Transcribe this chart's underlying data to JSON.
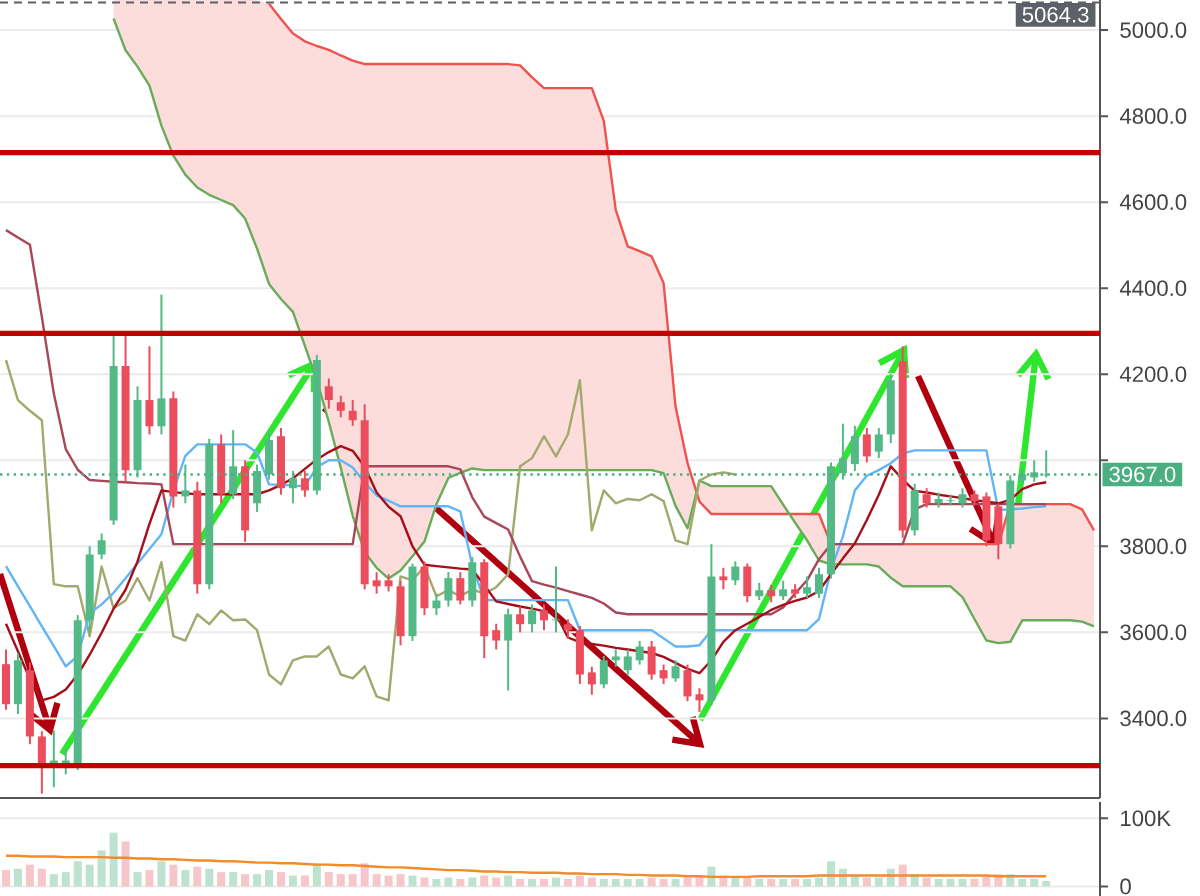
{
  "chart_data": [
    {
      "type": "candlestick",
      "categories": [
        null,
        null,
        null,
        null,
        null,
        null,
        null,
        null,
        null,
        null,
        null,
        null,
        null,
        null,
        null,
        null,
        null,
        null,
        null,
        null,
        null,
        null,
        null,
        null,
        null,
        null,
        null,
        null,
        null,
        null,
        null,
        null,
        null,
        null,
        null,
        null,
        null,
        null,
        null,
        null,
        null,
        null,
        null,
        null,
        null,
        null,
        null,
        null,
        null,
        null,
        null,
        null,
        null,
        null,
        null,
        null,
        null,
        null,
        null,
        null,
        null,
        null,
        null,
        null,
        null,
        null,
        null,
        null,
        null,
        null,
        null,
        null,
        null,
        null,
        null,
        null,
        null,
        null,
        null,
        null,
        null,
        null,
        null,
        null,
        null,
        null,
        null,
        null,
        null,
        null,
        null,
        null
      ],
      "ohlc": [
        [
          3526,
          3560,
          3420,
          3433
        ],
        [
          3433,
          3550,
          3410,
          3535
        ],
        [
          3512,
          3530,
          3340,
          3358
        ],
        [
          3358,
          3370,
          3225,
          3288
        ],
        [
          3288,
          3372,
          3240,
          3302
        ],
        [
          3290,
          3330,
          3270,
          3302
        ],
        [
          3293,
          3640,
          3280,
          3628
        ],
        [
          3628,
          3800,
          3600,
          3781
        ],
        [
          3781,
          3830,
          3770,
          3814
        ],
        [
          3860,
          4290,
          3850,
          4219
        ],
        [
          4219,
          4290,
          3950,
          3977
        ],
        [
          3977,
          4172,
          3960,
          4140
        ],
        [
          4140,
          4265,
          4060,
          4079
        ],
        [
          4079,
          4385,
          4060,
          4144
        ],
        [
          4144,
          4160,
          3890,
          3916
        ],
        [
          3916,
          3990,
          3900,
          3930
        ],
        [
          3930,
          3950,
          3690,
          3712
        ],
        [
          3712,
          4050,
          3700,
          4037
        ],
        [
          4037,
          4060,
          3900,
          3921
        ],
        [
          3921,
          4070,
          3910,
          3986
        ],
        [
          3986,
          4000,
          3810,
          3837
        ],
        [
          3900,
          3990,
          3880,
          3975
        ],
        [
          3967,
          4070,
          3955,
          4047
        ],
        [
          4056,
          4075,
          3920,
          3935
        ],
        [
          3935,
          3975,
          3900,
          3958
        ],
        [
          3958,
          3975,
          3915,
          3930
        ],
        [
          3930,
          4245,
          3920,
          4233
        ],
        [
          4172,
          4190,
          4120,
          4140
        ],
        [
          4135,
          4150,
          4100,
          4115
        ],
        [
          4115,
          4140,
          4080,
          4093
        ],
        [
          4093,
          4130,
          3700,
          3712
        ],
        [
          3721,
          3740,
          3690,
          3707
        ],
        [
          3721,
          3735,
          3695,
          3707
        ],
        [
          3707,
          3720,
          3570,
          3591
        ],
        [
          3591,
          3760,
          3580,
          3753
        ],
        [
          3753,
          3765,
          3640,
          3656
        ],
        [
          3656,
          3690,
          3640,
          3674
        ],
        [
          3674,
          3740,
          3660,
          3726
        ],
        [
          3726,
          3740,
          3665,
          3674
        ],
        [
          3674,
          3775,
          3660,
          3763
        ],
        [
          3763,
          3770,
          3540,
          3591
        ],
        [
          3605,
          3620,
          3560,
          3581
        ],
        [
          3581,
          3655,
          3465,
          3642
        ],
        [
          3642,
          3660,
          3600,
          3619
        ],
        [
          3619,
          3665,
          3600,
          3651
        ],
        [
          3651,
          3665,
          3605,
          3628
        ],
        [
          3628,
          3753,
          3600,
          3630
        ],
        [
          3619,
          3630,
          3585,
          3605
        ],
        [
          3605,
          3615,
          3480,
          3502
        ],
        [
          3507,
          3520,
          3455,
          3479
        ],
        [
          3479,
          3545,
          3470,
          3535
        ],
        [
          3535,
          3560,
          3520,
          3544
        ],
        [
          3512,
          3560,
          3500,
          3544
        ],
        [
          3535,
          3580,
          3525,
          3567
        ],
        [
          3567,
          3580,
          3490,
          3502
        ],
        [
          3512,
          3525,
          3480,
          3493
        ],
        [
          3493,
          3535,
          3485,
          3521
        ],
        [
          3512,
          3525,
          3440,
          3451
        ],
        [
          3456,
          3470,
          3415,
          3442
        ],
        [
          3442,
          3805,
          3430,
          3730
        ],
        [
          3730,
          3750,
          3700,
          3721
        ],
        [
          3721,
          3765,
          3710,
          3753
        ],
        [
          3753,
          3760,
          3670,
          3684
        ],
        [
          3684,
          3715,
          3675,
          3698
        ],
        [
          3698,
          3710,
          3670,
          3684
        ],
        [
          3684,
          3720,
          3675,
          3700
        ],
        [
          3700,
          3712,
          3680,
          3690
        ],
        [
          3690,
          3730,
          3680,
          3705
        ],
        [
          3690,
          3750,
          3680,
          3735
        ],
        [
          3735,
          3995,
          3725,
          3986
        ],
        [
          3970,
          4085,
          3955,
          4005
        ],
        [
          3991,
          4080,
          3975,
          4056
        ],
        [
          4060,
          4075,
          3995,
          4009
        ],
        [
          4020,
          4075,
          4005,
          4060
        ],
        [
          4060,
          4200,
          4040,
          4186
        ],
        [
          4230,
          4265,
          3820,
          3837
        ],
        [
          3837,
          3945,
          3825,
          3930
        ],
        [
          3921,
          3935,
          3890,
          3900
        ],
        [
          3900,
          3925,
          3890,
          3910
        ],
        [
          3905,
          3920,
          3895,
          3907
        ],
        [
          3900,
          3935,
          3890,
          3921
        ],
        [
          3921,
          3930,
          3895,
          3905
        ],
        [
          3916,
          3925,
          3800,
          3814
        ],
        [
          3893,
          3900,
          3770,
          3805
        ],
        [
          3805,
          3965,
          3795,
          3953
        ],
        [
          3953,
          3980,
          3945,
          3967
        ],
        [
          3960,
          4000,
          3950,
          3972
        ],
        [
          3965,
          4023,
          3960,
          3967
        ],
        null,
        null,
        null,
        null
      ],
      "colors": [
        "#eb4d5c",
        "#53b987",
        "#eb4d5c",
        "#eb4d5c",
        "#53b987",
        "#53b987",
        "#53b987",
        "#53b987",
        "#53b987",
        "#53b987",
        "#eb4d5c",
        "#53b987",
        "#eb4d5c",
        "#53b987",
        "#eb4d5c",
        "#53b987",
        "#eb4d5c",
        "#53b987",
        "#eb4d5c",
        "#53b987",
        "#eb4d5c",
        "#53b987",
        "#53b987",
        "#eb4d5c",
        "#53b987",
        "#eb4d5c",
        "#53b987",
        "#eb4d5c",
        "#eb4d5c",
        "#eb4d5c",
        "#eb4d5c",
        "#eb4d5c",
        "#eb4d5c",
        "#eb4d5c",
        "#53b987",
        "#eb4d5c",
        "#53b987",
        "#53b987",
        "#eb4d5c",
        "#53b987",
        "#eb4d5c",
        "#eb4d5c",
        "#53b987",
        "#eb4d5c",
        "#53b987",
        "#eb4d5c",
        "#53b987",
        "#eb4d5c",
        "#eb4d5c",
        "#eb4d5c",
        "#53b987",
        "#53b987",
        "#53b987",
        "#53b987",
        "#eb4d5c",
        "#eb4d5c",
        "#53b987",
        "#eb4d5c",
        "#eb4d5c",
        "#53b987",
        "#eb4d5c",
        "#53b987",
        "#eb4d5c",
        "#53b987",
        "#eb4d5c",
        "#53b987",
        "#eb4d5c",
        "#53b987",
        "#53b987",
        "#53b987",
        "#53b987",
        "#53b987",
        "#eb4d5c",
        "#53b987",
        "#53b987",
        "#eb4d5c",
        "#53b987",
        "#eb4d5c",
        "#53b987",
        "#53b987",
        "#53b987",
        "#eb4d5c",
        "#eb4d5c",
        "#eb4d5c",
        "#53b987",
        "#53b987",
        "#53b987",
        "#53b987",
        null,
        null,
        null,
        null
      ],
      "ylim": [
        3215,
        5070
      ],
      "yticks": [
        {
          "value": 3400,
          "label": "3400.0"
        },
        {
          "value": 3600,
          "label": "3600.0"
        },
        {
          "value": 3800,
          "label": "3800.0"
        },
        {
          "value": 4000,
          "label": null
        },
        {
          "value": 4200,
          "label": "4200.0"
        },
        {
          "value": 4400,
          "label": "4400.0"
        },
        {
          "value": 4600,
          "label": "4600.0"
        },
        {
          "value": 4800,
          "label": "4800.0"
        },
        {
          "value": 5000,
          "label": "5000.0"
        }
      ],
      "grid": "y",
      "tick_labels": "y",
      "series": [
        {
          "type": "line",
          "color": "#ef5350",
          "values": [
            null,
            null,
            null,
            null,
            null,
            null,
            null,
            null,
            null,
            null,
            null,
            null,
            null,
            null,
            null,
            null,
            null,
            null,
            null,
            null,
            null,
            null,
            5061,
            5026,
            4992,
            4974,
            4963,
            4954,
            4941,
            4929,
            4921,
            4921,
            4921,
            4921,
            4921,
            4921,
            4921,
            4921,
            4921,
            4921,
            4921,
            4921,
            4921,
            4918,
            4890,
            4865,
            4865,
            4865,
            4865,
            4865,
            4789,
            4582,
            4497,
            4486,
            4474,
            4412,
            4125,
            3994,
            3904,
            3875,
            3875,
            3875,
            3875,
            3875,
            3875,
            3875,
            3875,
            3875,
            3875,
            3805,
            3805,
            3805,
            3805,
            3805,
            3805,
            3805,
            3805,
            3805,
            3805,
            3805,
            3805,
            3805,
            3805,
            3805,
            3898,
            3898,
            3898,
            3898,
            3898,
            3898,
            3886,
            3837
          ],
          "lower": [
            null,
            null,
            null,
            null,
            null,
            null,
            null,
            null,
            null,
            5027,
            4953,
            4915,
            4871,
            4778,
            4708,
            4664,
            4634,
            4617,
            4605,
            4593,
            4562,
            4492,
            4410,
            4375,
            4345,
            4266,
            4186,
            4089,
            3983,
            3871,
            3786,
            3750,
            3725,
            3744,
            3777,
            3811,
            3898,
            3959,
            3971,
            3981,
            3977,
            3977,
            3977,
            3977,
            3977,
            3977,
            3977,
            3977,
            3977,
            3977,
            3977,
            3977,
            3977,
            3977,
            3977,
            3970,
            3894,
            3842,
            3953,
            3940,
            3940,
            3940,
            3940,
            3940,
            3940,
            3897,
            3855,
            3814,
            3767,
            3758,
            3758,
            3758,
            3758,
            3753,
            3727,
            3707,
            3707,
            3707,
            3707,
            3707,
            3682,
            3631,
            3581,
            3575,
            3578,
            3628,
            3628,
            3628,
            3628,
            3628,
            3625,
            3614
          ],
          "upper": [
            null,
            null,
            null,
            null,
            null,
            null,
            null,
            null,
            null,
            5070,
            5070,
            5070,
            5070,
            5070,
            5070,
            5070,
            5070,
            5070,
            5070,
            5070,
            5070,
            5070,
            5061,
            5026,
            4992,
            4974,
            4963,
            4954,
            4941,
            4929,
            4921,
            4921,
            4921,
            4921,
            4921,
            4921,
            4921,
            4921,
            4921,
            4921,
            4921,
            4921,
            4921,
            4918,
            4890,
            4865,
            4865,
            4865,
            4865,
            4865,
            4789,
            4582,
            4497,
            4486,
            4474,
            4412,
            4125,
            3994,
            3904,
            3875,
            3875,
            3875,
            3875,
            3875,
            3875,
            3875,
            3875,
            3875,
            3875,
            3805,
            3805,
            3805,
            3805,
            3805,
            3805,
            3805,
            3805,
            3805,
            3805,
            3805,
            3805,
            3805,
            3805,
            3805,
            3898,
            3898,
            3898,
            3898,
            3898,
            3898,
            3886,
            3837
          ]
        },
        {
          "type": "line",
          "color": "#6aab5a",
          "values": [
            null,
            null,
            null,
            null,
            null,
            null,
            null,
            null,
            null,
            5027,
            4953,
            4915,
            4871,
            4778,
            4708,
            4664,
            4634,
            4617,
            4605,
            4593,
            4562,
            4492,
            4410,
            4375,
            4345,
            4266,
            4186,
            4089,
            3983,
            3871,
            3786,
            3750,
            3725,
            3744,
            3777,
            3811,
            3898,
            3959,
            3971,
            3981,
            3977,
            3977,
            3977,
            3977,
            3977,
            3977,
            3977,
            3977,
            3977,
            3977,
            3977,
            3977,
            3977,
            3977,
            3977,
            3970,
            3894,
            3842,
            3953,
            3940,
            3940,
            3940,
            3940,
            3940,
            3940,
            3897,
            3855,
            3814,
            3767,
            3758,
            3758,
            3758,
            3758,
            3753,
            3727,
            3707,
            3707,
            3707,
            3707,
            3707,
            3682,
            3631,
            3581,
            3575,
            3578,
            3628,
            3628,
            3628,
            3628,
            3628,
            3625,
            3614
          ]
        },
        {
          "type": "line",
          "color": "#a3a86e",
          "values": [
            4233,
            4140,
            4115,
            4093,
            3712,
            3707,
            3707,
            3591,
            3753,
            3656,
            3674,
            3726,
            3674,
            3763,
            3591,
            3581,
            3642,
            3619,
            3651,
            3628,
            3630,
            3605,
            3502,
            3479,
            3535,
            3544,
            3544,
            3567,
            3502,
            3493,
            3521,
            3451,
            3442,
            3730,
            3721,
            3753,
            3684,
            3698,
            3684,
            3700,
            3690,
            3705,
            3735,
            3986,
            4005,
            4056,
            4009,
            4060,
            4186,
            3837,
            3930,
            3900,
            3910,
            3907,
            3921,
            3905,
            3814,
            3805,
            3953,
            3967,
            3972,
            3967,
            null,
            null,
            null,
            null,
            null,
            null,
            null,
            null,
            null,
            null,
            null,
            null,
            null,
            null,
            null,
            null,
            null,
            null,
            null,
            null,
            null,
            null,
            null,
            null,
            null,
            null,
            null,
            null,
            null,
            null
          ]
        },
        {
          "type": "line",
          "color": "#64b5f6",
          "values": [
            3754,
            3707,
            3661,
            3614,
            3568,
            3521,
            3545,
            3644,
            3665,
            3692,
            3726,
            3760,
            3794,
            3828,
            3929,
            4010,
            4037,
            4037,
            4037,
            4037,
            4037,
            4018,
            3944,
            3943,
            3941,
            3940,
            3984,
            4000,
            4000,
            3983,
            3948,
            3918,
            3906,
            3893,
            3893,
            3893,
            3893,
            3893,
            3881,
            3755,
            3675,
            3675,
            3675,
            3675,
            3675,
            3675,
            3675,
            3675,
            3605,
            3605,
            3605,
            3605,
            3605,
            3605,
            3605,
            3586,
            3567,
            3567,
            3570,
            3605,
            3605,
            3605,
            3605,
            3605,
            3605,
            3605,
            3605,
            3605,
            3631,
            3745,
            3823,
            3930,
            3964,
            3977,
            3993,
            4016,
            4023,
            4023,
            4023,
            4023,
            4023,
            4023,
            4023,
            3884,
            3886,
            3888,
            3891,
            3893,
            null,
            null,
            null,
            null
          ]
        },
        {
          "type": "line",
          "color": "#a8475a",
          "values": [
            4535,
            4518,
            4501,
            4333,
            4155,
            4026,
            3978,
            3954,
            3952,
            3950,
            3949,
            3947,
            3946,
            3944,
            3805,
            3805,
            3805,
            3805,
            3805,
            3805,
            3805,
            3805,
            3805,
            3805,
            3805,
            3805,
            3805,
            3805,
            3805,
            3805,
            3986,
            3986,
            3986,
            3986,
            3986,
            3986,
            3986,
            3986,
            3979,
            3914,
            3869,
            3854,
            3839,
            3776,
            3719,
            3711,
            3704,
            3696,
            3688,
            3680,
            3667,
            3646,
            3642,
            3642,
            3642,
            3642,
            3642,
            3642,
            3642,
            3642,
            3642,
            3642,
            3642,
            3642,
            3642,
            3658,
            3690,
            3721,
            3770,
            3805,
            3805,
            3805,
            3805,
            3805,
            3805,
            3805,
            3886,
            3898,
            3898,
            3898,
            3898,
            3898,
            3898,
            3898,
            3898,
            3898,
            3898,
            3898,
            null,
            null,
            null,
            null
          ]
        },
        {
          "type": "line",
          "color": "#a50f1a",
          "values": [
            3620,
            3556,
            3491,
            3442,
            3450,
            3467,
            3502,
            3548,
            3599,
            3655,
            3699,
            3765,
            3852,
            3930,
            3926,
            3923,
            3921,
            3921,
            3921,
            3921,
            3921,
            3921,
            3930,
            3943,
            3958,
            3980,
            4002,
            4019,
            4033,
            4022,
            3985,
            3925,
            3892,
            3870,
            3800,
            3757,
            3754,
            3751,
            3748,
            3746,
            3710,
            3672,
            3666,
            3660,
            3655,
            3649,
            3643,
            3588,
            3577,
            3573,
            3569,
            3564,
            3560,
            3556,
            3552,
            3543,
            3529,
            3515,
            3505,
            3535,
            3578,
            3605,
            3620,
            3636,
            3652,
            3664,
            3673,
            3681,
            3696,
            3735,
            3772,
            3807,
            3861,
            3920,
            3986,
            3955,
            3929,
            3925,
            3920,
            3916,
            3912,
            3907,
            3904,
            3900,
            3908,
            3933,
            3944,
            3949,
            null,
            null,
            null,
            null
          ]
        }
      ],
      "ref_lines": [
        {
          "axis": "y",
          "value": 4715,
          "color": "#c40000",
          "line_style": "solid"
        },
        {
          "axis": "y",
          "value": 4295,
          "color": "#c40000",
          "line_style": "solid"
        },
        {
          "axis": "y",
          "value": 3290,
          "color": "#c40000",
          "line_style": "solid"
        },
        {
          "axis": "y",
          "value": 3967,
          "label": "3967.0",
          "color": "#4caf82",
          "line_style": "dotted"
        },
        {
          "axis": "y",
          "value": 5064.3,
          "label": "5064.3",
          "color": "#5d6069",
          "line_style": "dashed"
        }
      ]
    },
    {
      "type": "bar",
      "categories": [
        null,
        null,
        null,
        null,
        null,
        null,
        null,
        null,
        null,
        null,
        null,
        null,
        null,
        null,
        null,
        null,
        null,
        null,
        null,
        null,
        null,
        null,
        null,
        null,
        null,
        null,
        null,
        null,
        null,
        null,
        null,
        null,
        null,
        null,
        null,
        null,
        null,
        null,
        null,
        null,
        null,
        null,
        null,
        null,
        null,
        null,
        null,
        null,
        null,
        null,
        null,
        null,
        null,
        null,
        null,
        null,
        null,
        null,
        null,
        null,
        null,
        null,
        null,
        null,
        null,
        null,
        null,
        null,
        null,
        null,
        null,
        null,
        null,
        null,
        null,
        null,
        null,
        null,
        null,
        null,
        null,
        null,
        null,
        null,
        null,
        null,
        null,
        null,
        null,
        null,
        null,
        null
      ],
      "ylim": [
        -14000,
        124000
      ],
      "yticks": [
        {
          "value": 0,
          "label": "0"
        },
        {
          "value": 100000,
          "label": "100K"
        }
      ],
      "grid": "y",
      "tick_labels": "y",
      "series": [
        {
          "type": "bar",
          "values": [
            24000,
            26000,
            32000,
            26000,
            18000,
            21000,
            37000,
            32000,
            53000,
            79000,
            66000,
            21000,
            24000,
            37000,
            32000,
            24000,
            29000,
            26000,
            21000,
            21000,
            18000,
            18000,
            24000,
            21000,
            16000,
            16000,
            34000,
            21000,
            18000,
            18000,
            34000,
            18000,
            16000,
            18000,
            16000,
            13000,
            11000,
            13000,
            11000,
            13000,
            16000,
            13000,
            16000,
            11000,
            11000,
            11000,
            13000,
            11000,
            16000,
            13000,
            11000,
            11000,
            11000,
            11000,
            13000,
            11000,
            11000,
            13000,
            16000,
            29000,
            16000,
            13000,
            13000,
            11000,
            11000,
            11000,
            11000,
            11000,
            13000,
            37000,
            26000,
            16000,
            13000,
            13000,
            26000,
            32000,
            16000,
            13000,
            11000,
            11000,
            11000,
            11000,
            16000,
            18000,
            18000,
            11000,
            11000,
            8000,
            null,
            null,
            null,
            null
          ],
          "colors": [
            "#f7c6cb",
            "#bde3d0",
            "#f7c6cb",
            "#f7c6cb",
            "#bde3d0",
            "#bde3d0",
            "#bde3d0",
            "#bde3d0",
            "#bde3d0",
            "#bde3d0",
            "#f7c6cb",
            "#bde3d0",
            "#f7c6cb",
            "#bde3d0",
            "#f7c6cb",
            "#bde3d0",
            "#f7c6cb",
            "#bde3d0",
            "#f7c6cb",
            "#bde3d0",
            "#f7c6cb",
            "#bde3d0",
            "#bde3d0",
            "#f7c6cb",
            "#bde3d0",
            "#f7c6cb",
            "#bde3d0",
            "#f7c6cb",
            "#f7c6cb",
            "#f7c6cb",
            "#f7c6cb",
            "#f7c6cb",
            "#f7c6cb",
            "#f7c6cb",
            "#bde3d0",
            "#f7c6cb",
            "#bde3d0",
            "#bde3d0",
            "#f7c6cb",
            "#bde3d0",
            "#f7c6cb",
            "#f7c6cb",
            "#bde3d0",
            "#f7c6cb",
            "#bde3d0",
            "#f7c6cb",
            "#bde3d0",
            "#f7c6cb",
            "#f7c6cb",
            "#f7c6cb",
            "#bde3d0",
            "#bde3d0",
            "#bde3d0",
            "#bde3d0",
            "#f7c6cb",
            "#f7c6cb",
            "#bde3d0",
            "#f7c6cb",
            "#f7c6cb",
            "#bde3d0",
            "#f7c6cb",
            "#bde3d0",
            "#f7c6cb",
            "#bde3d0",
            "#f7c6cb",
            "#bde3d0",
            "#f7c6cb",
            "#bde3d0",
            "#bde3d0",
            "#bde3d0",
            "#bde3d0",
            "#bde3d0",
            "#f7c6cb",
            "#bde3d0",
            "#bde3d0",
            "#f7c6cb",
            "#bde3d0",
            "#f7c6cb",
            "#bde3d0",
            "#bde3d0",
            "#bde3d0",
            "#f7c6cb",
            "#f7c6cb",
            "#f7c6cb",
            "#bde3d0",
            "#bde3d0",
            "#bde3d0",
            "#bde3d0",
            null,
            null,
            null,
            null
          ]
        },
        {
          "type": "line",
          "color": "#f28c28",
          "values": [
            45000,
            45000,
            44000,
            44000,
            44000,
            43000,
            43000,
            43000,
            43000,
            42000,
            42000,
            41000,
            41000,
            40000,
            40000,
            39000,
            38000,
            38000,
            37000,
            37000,
            36000,
            35000,
            35000,
            34000,
            34000,
            33000,
            32000,
            32000,
            31000,
            31000,
            30000,
            29000,
            28000,
            28000,
            27000,
            26000,
            25000,
            24000,
            24000,
            23000,
            22000,
            22000,
            21000,
            21000,
            20000,
            20000,
            20000,
            19000,
            19000,
            18000,
            18000,
            18000,
            17000,
            17000,
            16000,
            16000,
            16000,
            15000,
            15000,
            14000,
            14000,
            14000,
            14000,
            15000,
            15000,
            15000,
            15000,
            15000,
            16000,
            16000,
            16000,
            16000,
            16000,
            16000,
            16000,
            16000,
            16000,
            16000,
            16000,
            16000,
            16000,
            16000,
            16000,
            15000,
            15000,
            15000,
            15000,
            15000,
            null,
            null,
            null,
            null
          ]
        }
      ]
    }
  ]
}
